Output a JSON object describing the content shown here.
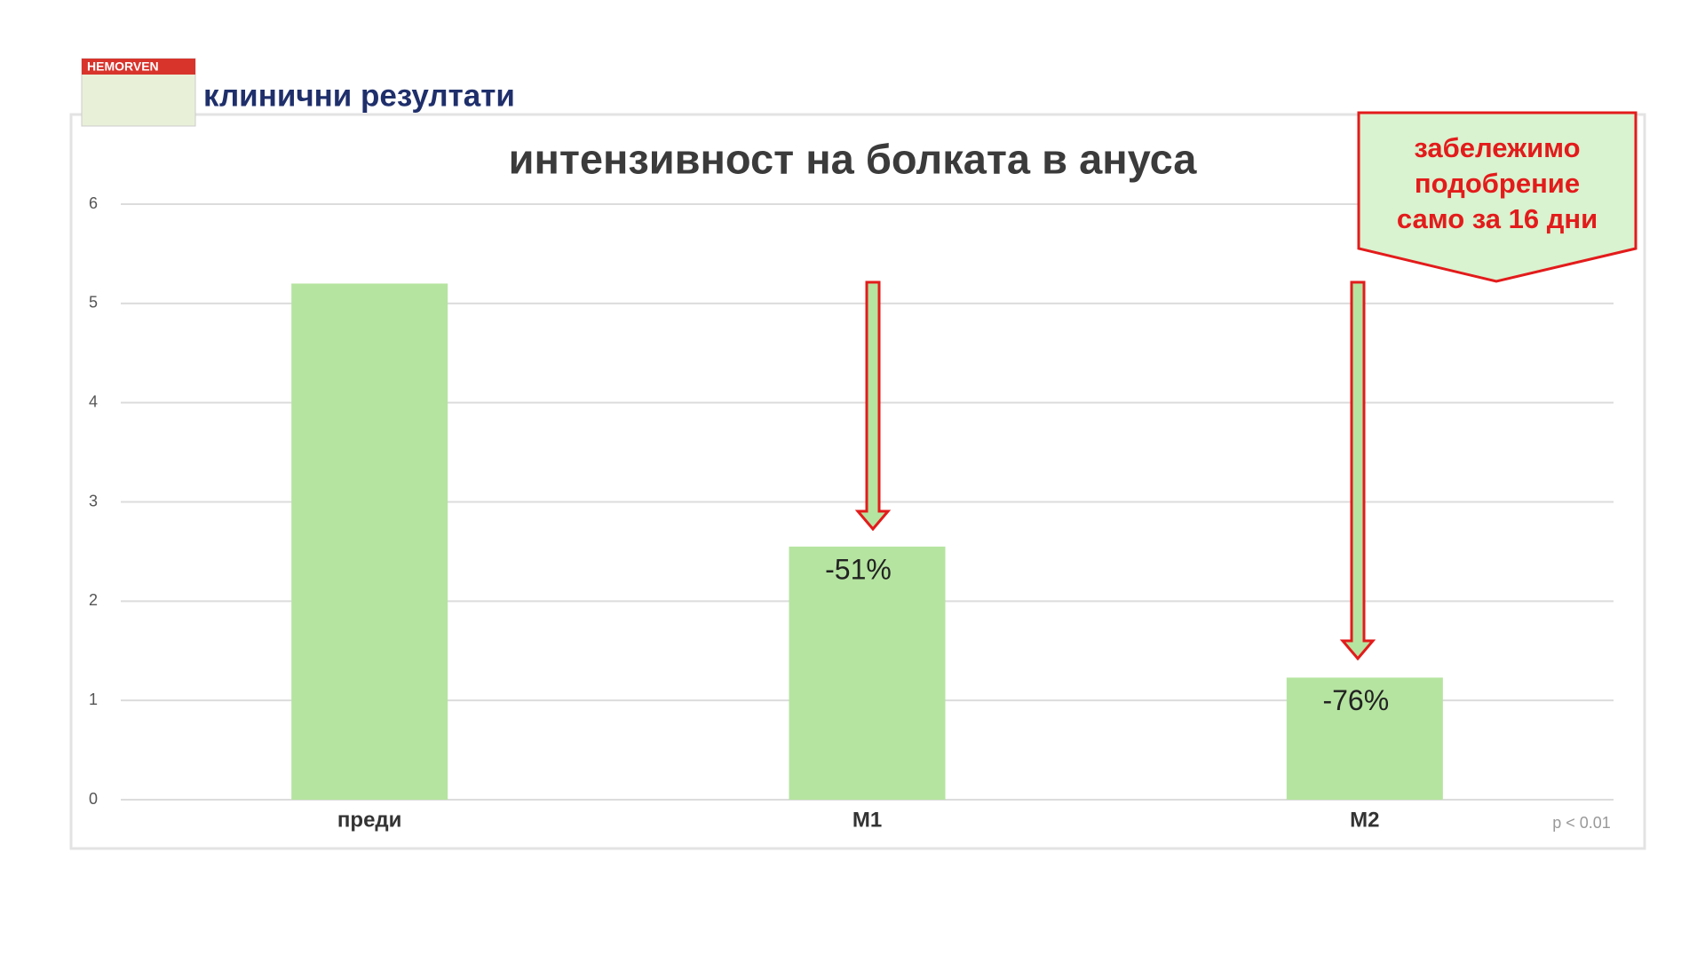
{
  "header": {
    "logo": "HEMORVEN",
    "title": "клинични резултати"
  },
  "chart_data": {
    "type": "bar",
    "title": "интензивност на болката в ануса",
    "categories": [
      "преди",
      "М1",
      "М2"
    ],
    "values": [
      5.2,
      2.55,
      1.23
    ],
    "change_labels": [
      null,
      "-51%",
      "-76%"
    ],
    "color": "#b5e4a0",
    "ylim": [
      0,
      6
    ],
    "yticks": [
      0,
      1,
      2,
      3,
      4,
      5,
      6
    ],
    "grid": true,
    "callout": [
      "забележимо",
      "подобрение",
      "само за 16 дни"
    ],
    "note": "p < 0.01"
  }
}
